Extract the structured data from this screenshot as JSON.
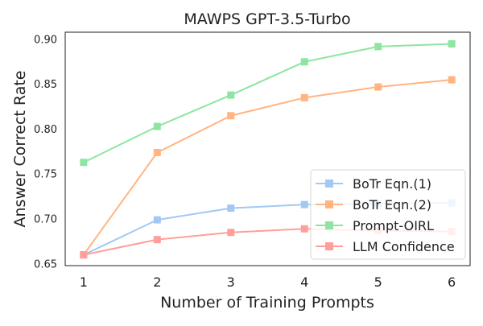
{
  "chart_data": {
    "type": "line",
    "title": "MAWPS GPT-3.5-Turbo",
    "xlabel": "Number of Training Prompts",
    "ylabel": "Answer Correct Rate",
    "x": [
      1,
      2,
      3,
      4,
      5,
      6
    ],
    "xticks": [
      "1",
      "2",
      "3",
      "4",
      "5",
      "6"
    ],
    "yticks": [
      "0.65",
      "0.70",
      "0.75",
      "0.80",
      "0.85",
      "0.90"
    ],
    "ytick_values": [
      0.65,
      0.7,
      0.75,
      0.8,
      0.85,
      0.9
    ],
    "xlim": [
      0.75,
      6.25
    ],
    "ylim": [
      0.648,
      0.908
    ],
    "grid": false,
    "legend_position": "lower-right",
    "series": [
      {
        "name": "BoTr Eqn.(1)",
        "color": "#a1c9f4",
        "marker": "square",
        "values": [
          0.66,
          0.699,
          0.712,
          0.716,
          0.717,
          0.718
        ]
      },
      {
        "name": "BoTr Eqn.(2)",
        "color": "#ffb482",
        "marker": "square",
        "values": [
          0.66,
          0.774,
          0.815,
          0.835,
          0.847,
          0.855
        ]
      },
      {
        "name": "Prompt-OIRL",
        "color": "#8de5a1",
        "marker": "square",
        "values": [
          0.763,
          0.803,
          0.838,
          0.875,
          0.892,
          0.895
        ]
      },
      {
        "name": "LLM Confidence",
        "color": "#ff9f9b",
        "marker": "square",
        "values": [
          0.66,
          0.677,
          0.685,
          0.689,
          0.687,
          0.686
        ]
      }
    ]
  }
}
